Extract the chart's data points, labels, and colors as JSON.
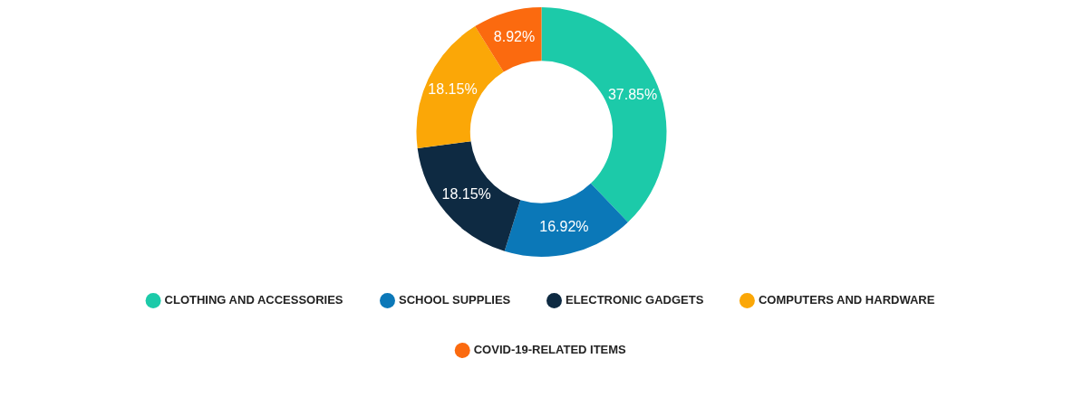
{
  "chart_data": {
    "type": "donut",
    "categories": [
      "CLOTHING AND ACCESSORIES",
      "SCHOOL SUPPLIES",
      "ELECTRONIC GADGETS",
      "COMPUTERS AND HARDWARE",
      "COVID-19-RELATED ITEMS"
    ],
    "values": [
      37.85,
      16.92,
      18.15,
      18.15,
      8.92
    ],
    "colors": [
      "#1ccaa9",
      "#0b78b8",
      "#0e2a42",
      "#fba707",
      "#fb6a0f"
    ],
    "value_labels": [
      "37.85%",
      "16.92%",
      "18.15%",
      "18.15%",
      "8.92%"
    ],
    "legend": "bottom"
  }
}
